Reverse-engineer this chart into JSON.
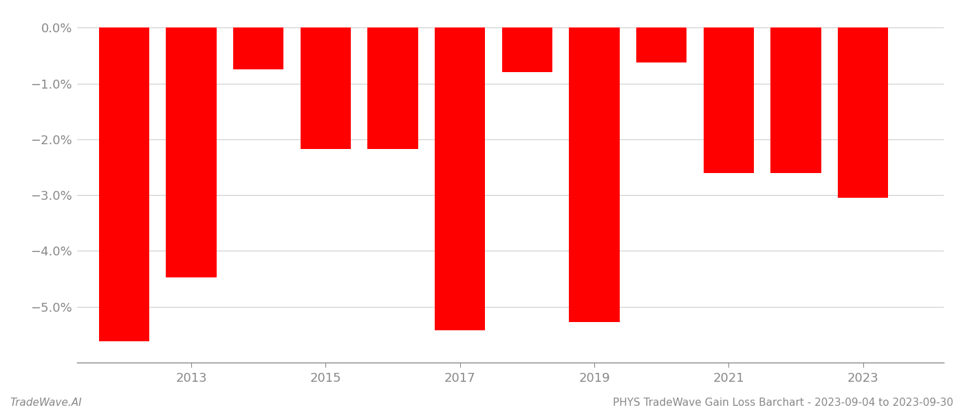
{
  "years": [
    2012,
    2013,
    2014,
    2015,
    2016,
    2017,
    2018,
    2019,
    2020,
    2021,
    2022,
    2023
  ],
  "values": [
    -5.62,
    -4.48,
    -0.75,
    -2.18,
    -2.18,
    -5.42,
    -0.8,
    -5.28,
    -0.62,
    -2.6,
    -2.6,
    -3.05
  ],
  "bar_color": "#ff0000",
  "background_color": "#ffffff",
  "grid_color": "#cccccc",
  "axis_color": "#888888",
  "text_color": "#888888",
  "ylim": [
    -6.0,
    0.2
  ],
  "yticks": [
    0.0,
    -1.0,
    -2.0,
    -3.0,
    -4.0,
    -5.0
  ],
  "ytick_labels": [
    "0.0%",
    "−1.0%",
    "−2.0%",
    "−3.0%",
    "−4.0%",
    "−5.0%"
  ],
  "xtick_years": [
    2013,
    2015,
    2017,
    2019,
    2021,
    2023
  ],
  "xlim": [
    2011.3,
    2024.2
  ],
  "bottom_left_text": "TradeWave.AI",
  "bottom_right_text": "PHYS TradeWave Gain Loss Barchart - 2023-09-04 to 2023-09-30",
  "bottom_text_color": "#888888",
  "bar_width": 0.75,
  "figsize": [
    14.0,
    6.0
  ],
  "dpi": 100
}
